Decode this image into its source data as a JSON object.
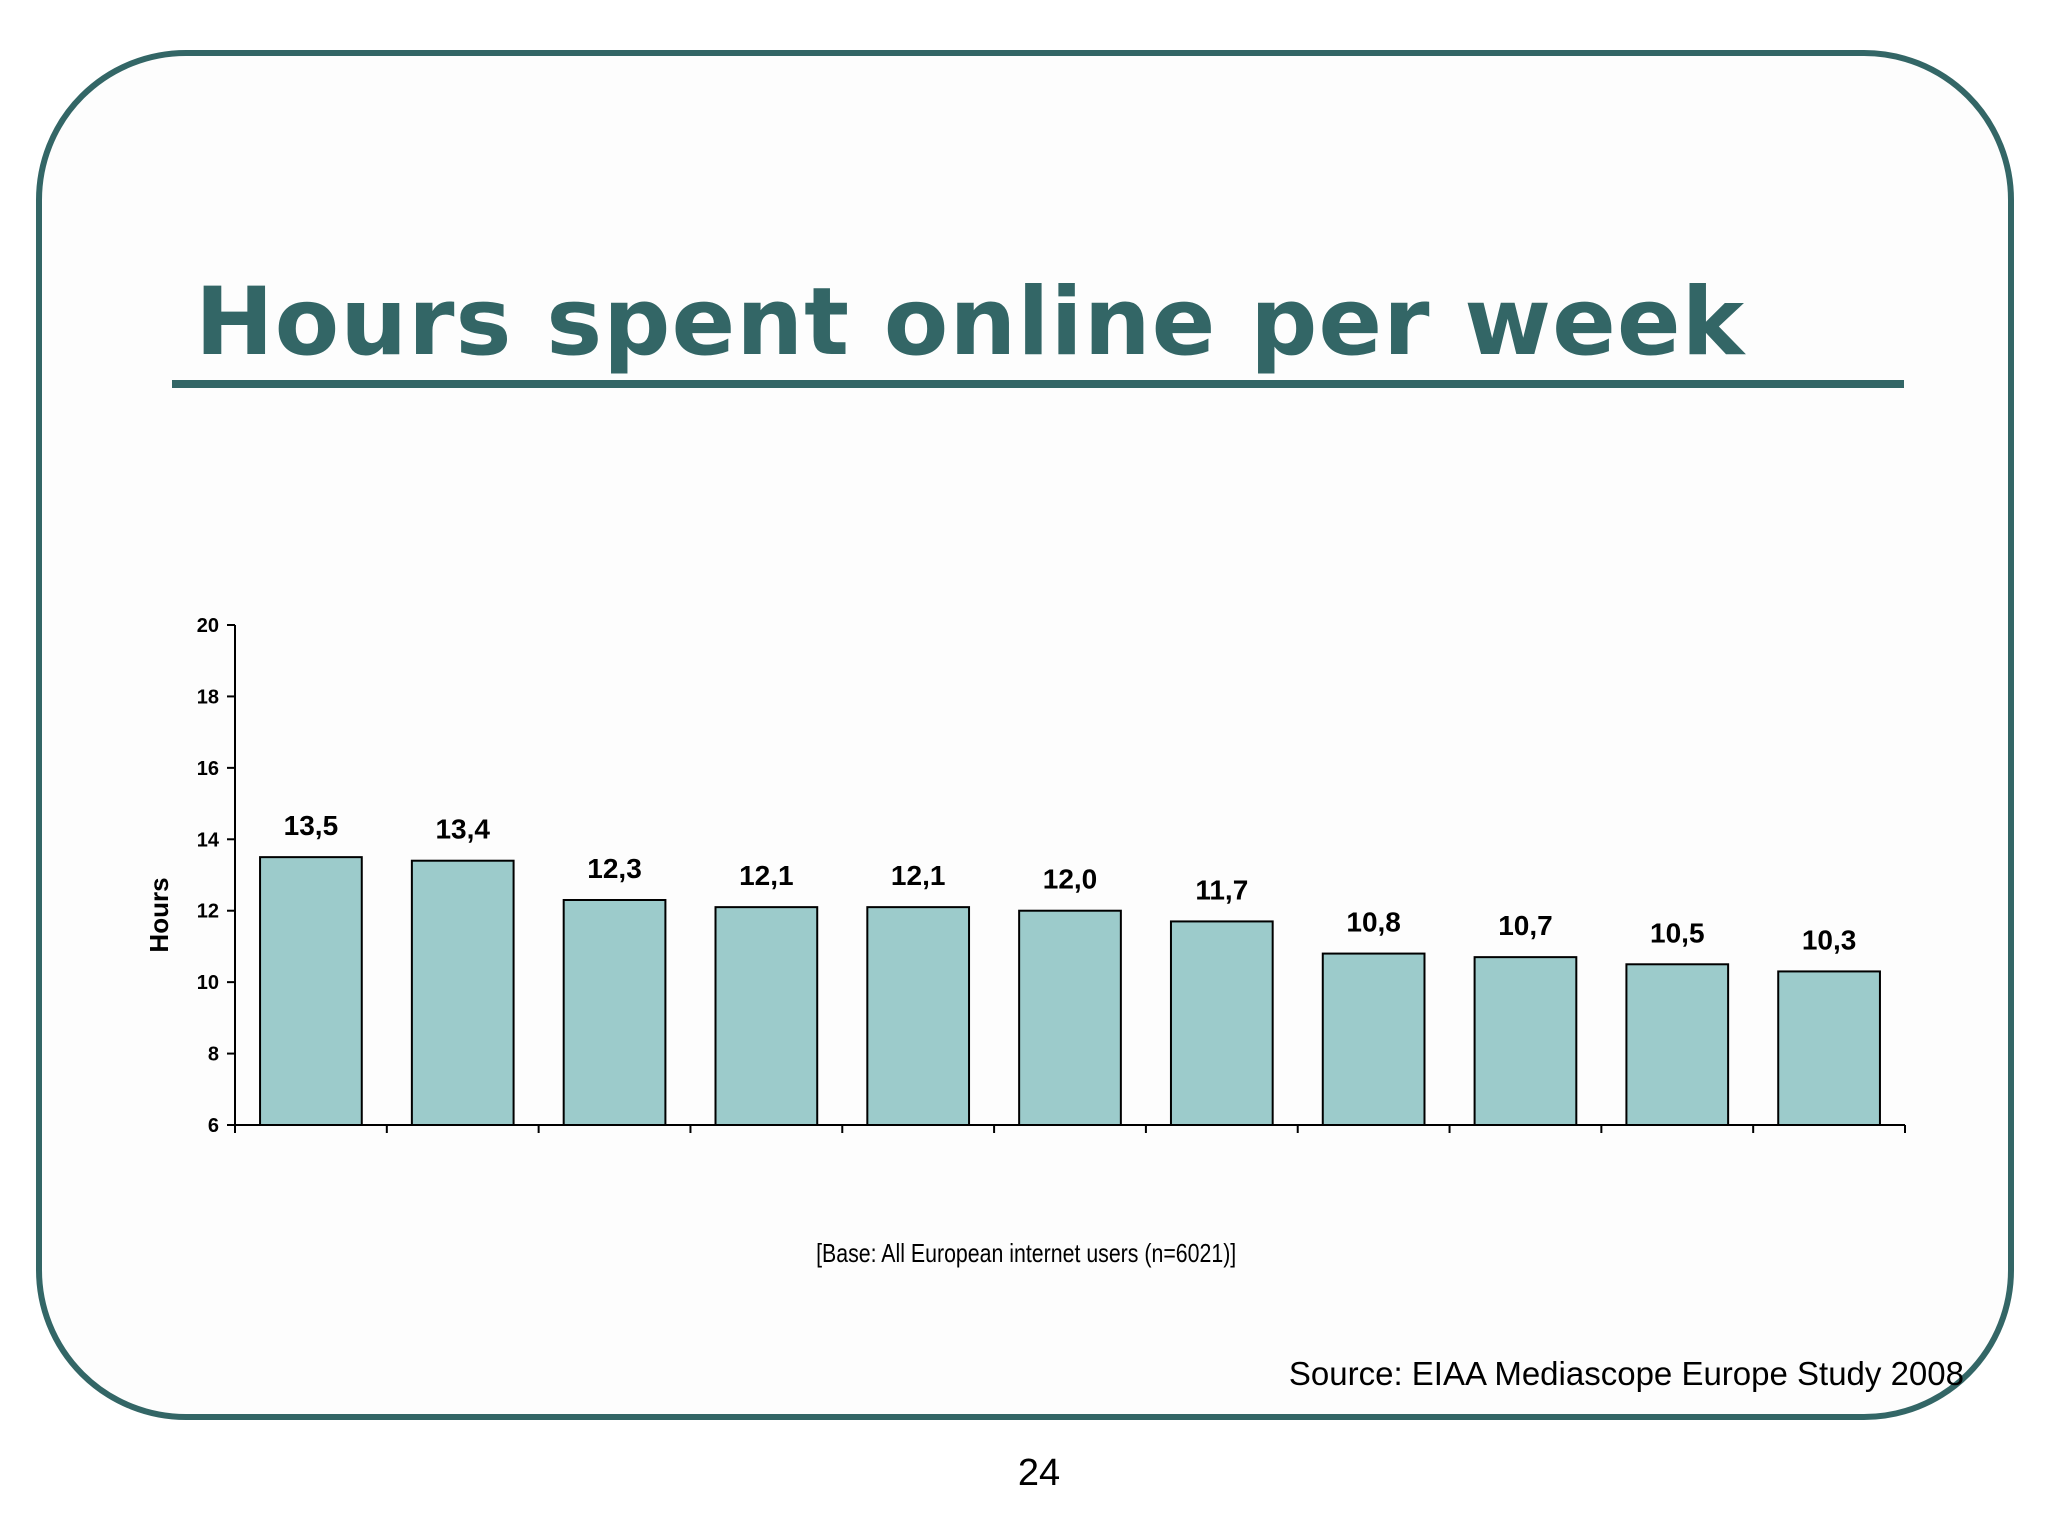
{
  "slide": {
    "title": "Hours spent online per week",
    "base_note": "[Base: All European internet users (n=6021)]",
    "source": "Source: EIAA Mediascope Europe Study 2008",
    "page_number": "24"
  },
  "colors": {
    "accent": "#336666",
    "bar_fill": "#9ccbcb",
    "bar_stroke": "#000000"
  },
  "chart_data": {
    "type": "bar",
    "title": "",
    "xlabel": "",
    "ylabel": "Hours",
    "ylim": [
      6,
      20
    ],
    "yticks": [
      6,
      8,
      10,
      12,
      14,
      16,
      18,
      20
    ],
    "grid": false,
    "legend": "none",
    "values": [
      13.5,
      13.4,
      12.3,
      12.1,
      12.1,
      12.0,
      11.7,
      10.8,
      10.7,
      10.5,
      10.3
    ],
    "data_labels": [
      "13,5",
      "13,4",
      "12,3",
      "12,1",
      "12,1",
      "12,0",
      "11,7",
      "10,8",
      "10,7",
      "10,5",
      "10,3"
    ]
  }
}
